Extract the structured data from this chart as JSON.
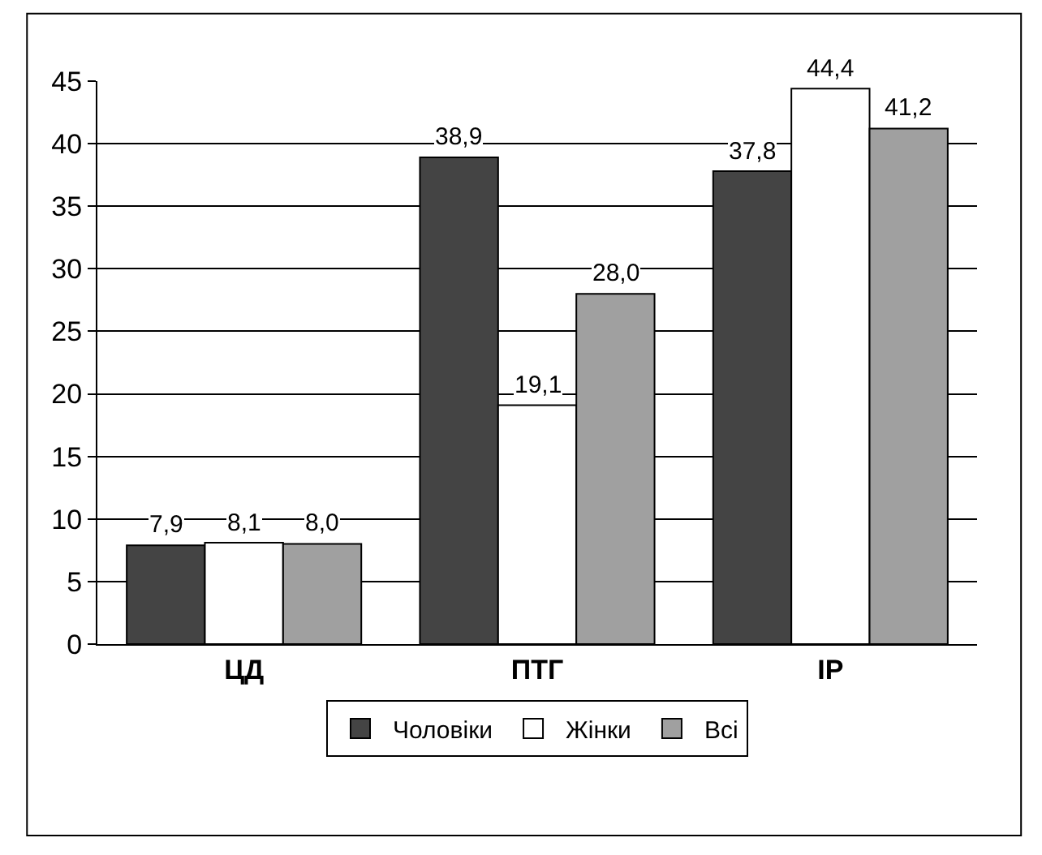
{
  "chart_data": {
    "type": "bar",
    "categories": [
      "ЦД",
      "ПТГ",
      "ІР"
    ],
    "series": [
      {
        "name": "Чоловіки",
        "color": "#444444",
        "values": [
          7.9,
          38.9,
          37.8
        ],
        "value_labels": [
          "7,9",
          "38,9",
          "37,8"
        ]
      },
      {
        "name": "Жінки",
        "color": "#ffffff",
        "values": [
          8.1,
          19.1,
          44.4
        ],
        "value_labels": [
          "8,1",
          "19,1",
          "44,4"
        ]
      },
      {
        "name": "Всі",
        "color": "#a0a0a0",
        "values": [
          8.0,
          28.0,
          41.2
        ],
        "value_labels": [
          "8,0",
          "28,0",
          "41,2"
        ]
      }
    ],
    "ylim": [
      0,
      45
    ],
    "yticks": [
      0,
      5,
      10,
      15,
      20,
      25,
      30,
      35,
      40,
      45
    ],
    "grid": "y",
    "legend": "bottom"
  }
}
